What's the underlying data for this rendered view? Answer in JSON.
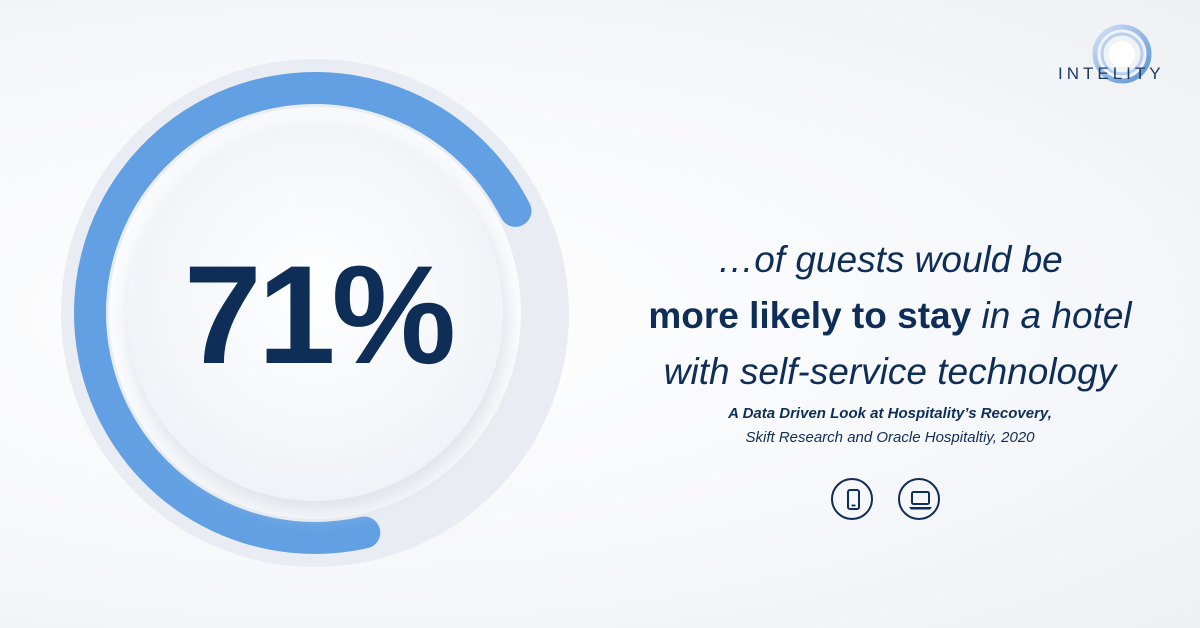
{
  "brand": {
    "logo_text": "INTELITY",
    "colors": {
      "navy": "#0f2e57",
      "ring_blue": "#62a0e3",
      "track": "#e9edf3"
    }
  },
  "stat": {
    "value": "71%",
    "fraction": 0.71
  },
  "headline": {
    "line1": "…of guests would be",
    "line2_bold": "more likely to stay",
    "line2_rest": " in a hotel",
    "line3": "with self-service technology"
  },
  "source": {
    "title": "A Data Driven Look at Hospitality’s Recovery,",
    "publisher": "Skift Research and Oracle Hospitaltiy, 2020"
  },
  "icons": [
    {
      "name": "smartphone-icon"
    },
    {
      "name": "laptop-icon"
    }
  ]
}
